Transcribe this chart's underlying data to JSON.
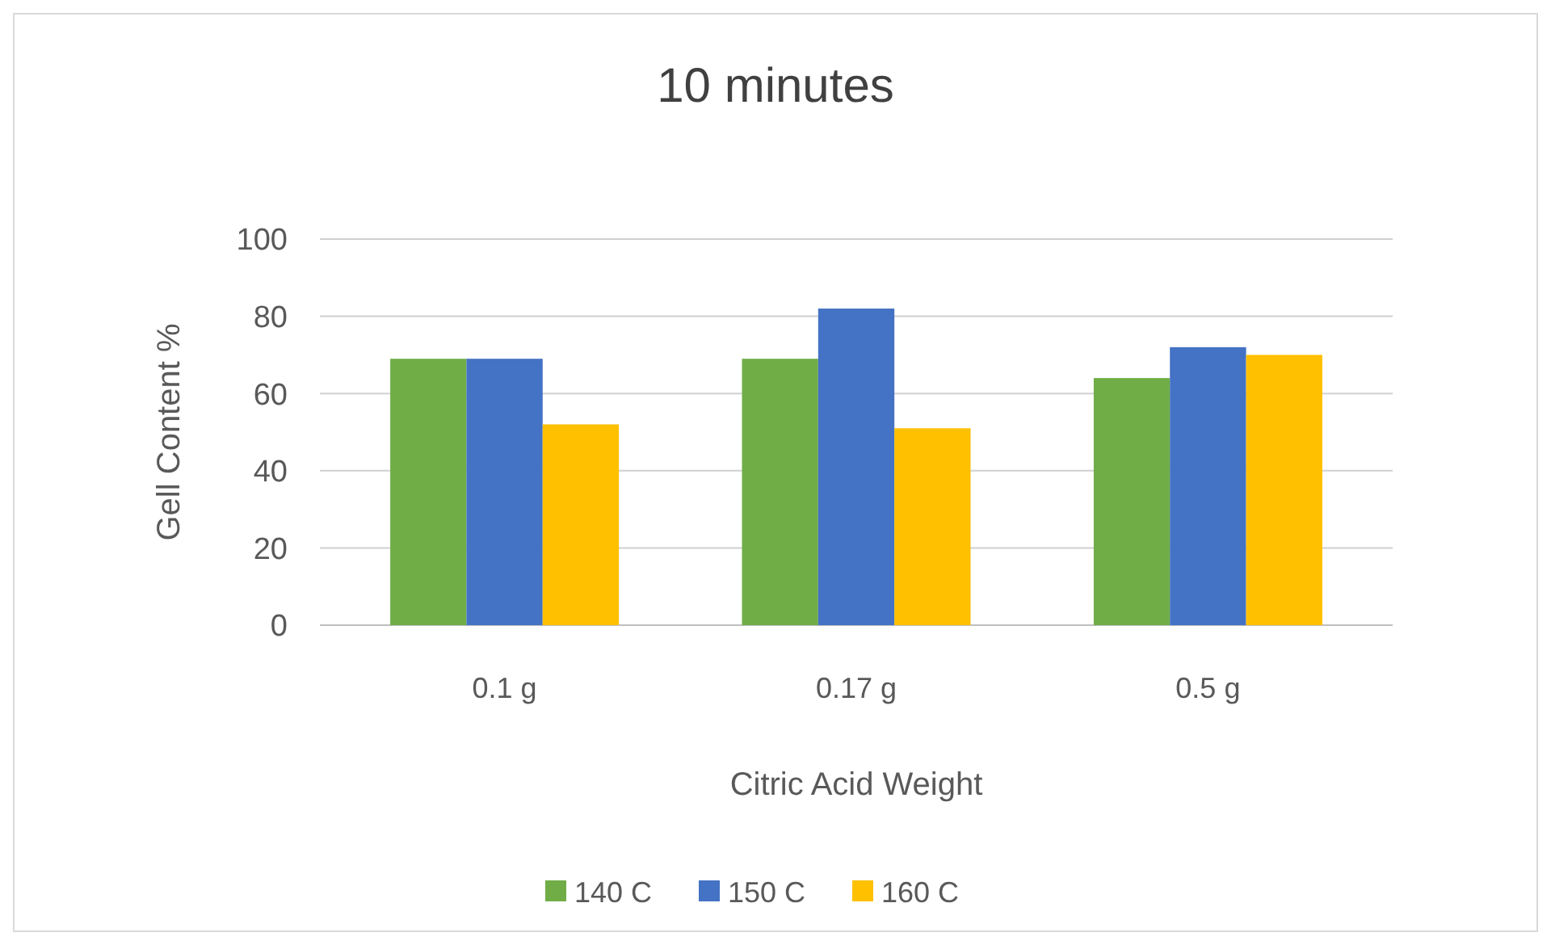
{
  "chart_data": {
    "type": "bar",
    "title": "10 minutes",
    "xlabel": "Citric Acid Weight",
    "ylabel": "Gell Content %",
    "categories": [
      "0.1 g",
      "0.17 g",
      "0.5 g"
    ],
    "series": [
      {
        "name": "140 C",
        "color": "#70ad47",
        "values": [
          69,
          69,
          64
        ]
      },
      {
        "name": "150 C",
        "color": "#4472c4",
        "values": [
          69,
          82,
          72
        ]
      },
      {
        "name": "160 C",
        "color": "#ffc000",
        "values": [
          52,
          51,
          70
        ]
      }
    ],
    "ylim": [
      0,
      100
    ],
    "yticks": [
      0,
      20,
      40,
      60,
      80,
      100
    ],
    "grid": "y",
    "legend": "bottom"
  }
}
